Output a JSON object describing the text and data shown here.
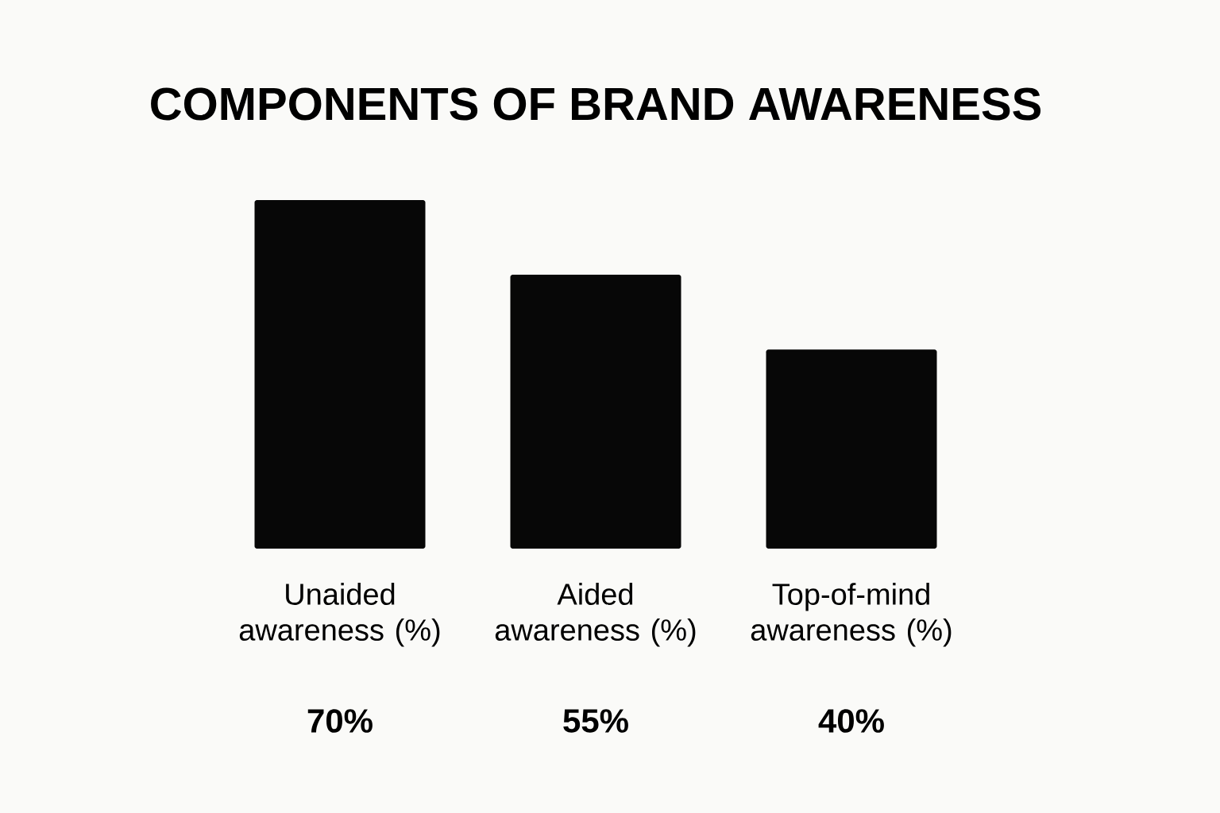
{
  "chart_data": {
    "type": "bar",
    "title": "COMPONENTS OF BRAND AWARENESS",
    "categories": [
      "Unaided awareness (%)",
      "Aided awareness (%)",
      "Top-of-mind awareness (%)"
    ],
    "values": [
      70,
      55,
      40
    ],
    "color": "#070707",
    "value_labels": [
      "70%",
      "55%",
      "40%"
    ]
  }
}
